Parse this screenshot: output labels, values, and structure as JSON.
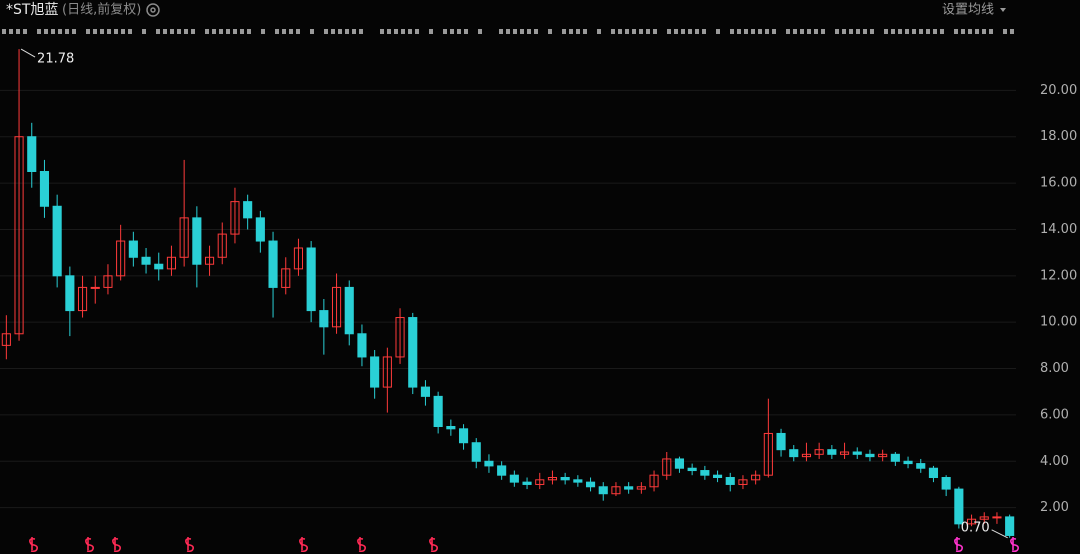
{
  "chart_data": {
    "type": "candlestick",
    "title": "*ST旭蓝",
    "subtitle": "(日线,前复权)",
    "ma_button": "设置均线",
    "up_color": "#ff3b3b",
    "down_color": "#2ad0d6",
    "grid": true,
    "ylim": [
      0,
      22
    ],
    "yticks": [
      {
        "value": 2,
        "label": "2.00"
      },
      {
        "value": 4,
        "label": "4.00"
      },
      {
        "value": 6,
        "label": "6.00"
      },
      {
        "value": 8,
        "label": "8.00"
      },
      {
        "value": 10,
        "label": "10.00"
      },
      {
        "value": 12,
        "label": "12.00"
      },
      {
        "value": 14,
        "label": "14.00"
      },
      {
        "value": 16,
        "label": "16.00"
      },
      {
        "value": 18,
        "label": "18.00"
      },
      {
        "value": 20,
        "label": "20.00"
      }
    ],
    "categories": [
      null,
      null,
      null,
      null,
      null,
      null,
      null,
      null,
      null,
      null,
      null,
      null,
      null,
      null,
      null,
      null,
      null,
      null,
      null,
      null,
      null,
      null,
      null,
      null,
      null,
      null,
      null,
      null,
      null,
      null,
      null,
      null,
      null,
      null,
      null,
      null,
      null,
      null,
      null,
      null,
      null,
      null,
      null,
      null,
      null,
      null,
      null,
      null,
      null,
      null,
      null,
      null,
      null,
      null,
      null,
      null,
      null,
      null,
      null,
      null,
      null,
      null,
      null,
      null,
      null,
      null,
      null,
      null,
      null,
      null,
      null,
      null,
      null,
      null,
      null,
      null,
      null,
      null,
      null,
      null
    ],
    "open": [
      9.0,
      9.5,
      18,
      16.5,
      15,
      12,
      10.5,
      11.5,
      11.5,
      12,
      13.5,
      12.8,
      12.5,
      12.3,
      12.8,
      14.5,
      12.5,
      12.8,
      13.8,
      15.2,
      14.5,
      13.5,
      11.5,
      12.3,
      13.2,
      10.5,
      9.8,
      11.5,
      9.5,
      8.5,
      7.2,
      8.5,
      10.2,
      7.2,
      6.8,
      5.5,
      5.4,
      4.8,
      4.0,
      3.8,
      3.4,
      3.1,
      3.0,
      3.2,
      3.3,
      3.2,
      3.1,
      2.9,
      2.6,
      2.9,
      2.8,
      2.9,
      3.4,
      4.1,
      3.7,
      3.6,
      3.4,
      3.3,
      3.0,
      3.2,
      3.4,
      5.2,
      4.5,
      4.2,
      4.3,
      4.5,
      4.3,
      4.4,
      4.3,
      4.2,
      4.3,
      4.0,
      3.9,
      3.7,
      3.3,
      2.8,
      1.3,
      1.5,
      1.6,
      1.6
    ],
    "high": [
      10.3,
      21.78,
      18.6,
      17,
      15.5,
      12.4,
      12,
      12,
      12.5,
      14.2,
      13.9,
      13.2,
      13,
      13.3,
      17,
      15,
      13.3,
      14.3,
      15.8,
      15.5,
      14.8,
      13.9,
      12.8,
      13.6,
      13.5,
      11,
      12.1,
      11.8,
      9.9,
      8.8,
      8.9,
      10.6,
      10.4,
      7.5,
      7,
      5.8,
      5.6,
      5,
      4.3,
      4,
      3.6,
      3.3,
      3.5,
      3.6,
      3.5,
      3.4,
      3.3,
      3.1,
      3.1,
      3.1,
      3.1,
      3.6,
      4.4,
      4.2,
      3.9,
      3.8,
      3.6,
      3.5,
      3.4,
      3.6,
      6.7,
      5.4,
      4.7,
      4.8,
      4.8,
      4.7,
      4.8,
      4.6,
      4.5,
      4.5,
      4.4,
      4.2,
      4.1,
      3.8,
      3.4,
      2.9,
      1.7,
      1.8,
      1.8,
      1.7
    ],
    "low": [
      8.4,
      9.2,
      15.8,
      14.5,
      11.5,
      9.4,
      10.2,
      10.8,
      11.2,
      11.8,
      12.4,
      12.1,
      11.8,
      12,
      12.4,
      11.5,
      12,
      12.5,
      13.4,
      14,
      13,
      10.2,
      11.2,
      12,
      10,
      8.6,
      9.5,
      9,
      8.1,
      6.7,
      6.1,
      8.2,
      6.9,
      6.4,
      5.2,
      5.1,
      4.5,
      3.7,
      3.5,
      3.2,
      2.9,
      2.8,
      2.8,
      3,
      3,
      2.9,
      2.7,
      2.3,
      2.5,
      2.6,
      2.6,
      2.7,
      3.2,
      3.5,
      3.4,
      3.2,
      3.1,
      2.7,
      2.8,
      3,
      3.3,
      4.2,
      4,
      4,
      4.1,
      4.1,
      4.1,
      4.1,
      4,
      4,
      3.8,
      3.7,
      3.5,
      3.1,
      2.5,
      1.1,
      1.2,
      1.3,
      1.3,
      0.7
    ],
    "close": [
      9.5,
      18,
      16.5,
      15,
      12,
      10.5,
      11.5,
      11.5,
      12,
      13.5,
      12.8,
      12.5,
      12.3,
      12.8,
      14.5,
      12.5,
      12.8,
      13.8,
      15.2,
      14.5,
      13.5,
      11.5,
      12.3,
      13.2,
      10.5,
      9.8,
      11.5,
      9.5,
      8.5,
      7.2,
      8.5,
      10.2,
      7.2,
      6.8,
      5.5,
      5.4,
      4.8,
      4.0,
      3.8,
      3.4,
      3.1,
      3.0,
      3.2,
      3.3,
      3.2,
      3.1,
      2.9,
      2.6,
      2.9,
      2.8,
      2.9,
      3.4,
      4.1,
      3.7,
      3.6,
      3.4,
      3.3,
      3.0,
      3.2,
      3.4,
      5.2,
      4.5,
      4.2,
      4.3,
      4.5,
      4.3,
      4.4,
      4.3,
      4.2,
      4.3,
      4.0,
      3.9,
      3.7,
      3.3,
      2.8,
      1.3,
      1.5,
      1.6,
      1.6,
      0.8
    ],
    "annotations": [
      {
        "value": 21.78
      },
      {
        "value": 0.7,
        "label": "0.70"
      }
    ]
  }
}
